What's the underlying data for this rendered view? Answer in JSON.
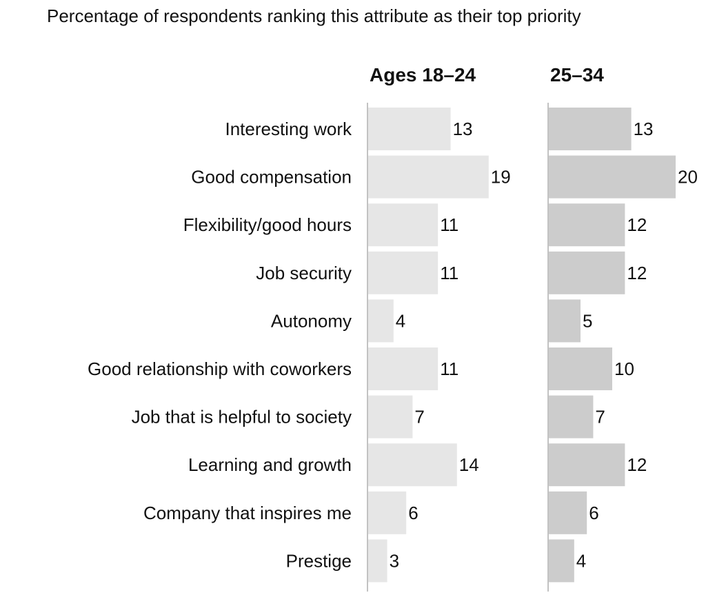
{
  "chart_data": {
    "type": "bar",
    "orientation": "horizontal",
    "subtitle": "Percentage of respondents ranking this attribute as their top priority",
    "categories": [
      "Interesting work",
      "Good compensation",
      "Flexibility/good hours",
      "Job security",
      "Autonomy",
      "Good relationship with coworkers",
      "Job that is helpful to society",
      "Learning and growth",
      "Company that inspires me",
      "Prestige"
    ],
    "series": [
      {
        "name": "Ages 18–24",
        "values": [
          13,
          19,
          11,
          11,
          4,
          11,
          7,
          14,
          6,
          3
        ],
        "color": "#e6e6e6"
      },
      {
        "name": "25–34",
        "values": [
          13,
          20,
          12,
          12,
          5,
          10,
          7,
          12,
          6,
          4
        ],
        "color": "#cccccc"
      }
    ],
    "data_labels": true,
    "grid": false,
    "legend": "none"
  }
}
